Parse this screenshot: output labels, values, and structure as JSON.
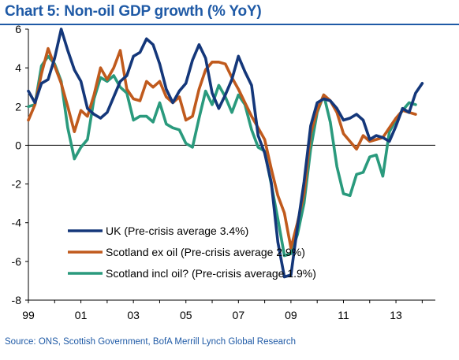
{
  "title": "Chart 5:  Non-oil GDP growth (% YoY)",
  "source": "Source:  ONS, Scottish Government, BofA Merrill Lynch Global Research",
  "chart_data": {
    "type": "line",
    "title": "Chart 5:  Non-oil GDP growth (% YoY)",
    "xlabel": "",
    "ylabel": "",
    "ylim": [
      -8,
      6
    ],
    "xlim": [
      1999.0,
      2014.5
    ],
    "yticks": [
      6,
      4,
      2,
      0,
      -2,
      -4,
      -6,
      -8
    ],
    "xtick_labels": [
      "99",
      "01",
      "03",
      "05",
      "07",
      "09",
      "11",
      "13"
    ],
    "xtick_values": [
      1999,
      2001,
      2003,
      2005,
      2007,
      2009,
      2011,
      2013
    ],
    "grid": false,
    "legend_position": "bottom-left",
    "series": [
      {
        "name": "UK (Pre-crisis average 3.4%)",
        "color": "#14377a",
        "x": [
          1999.0,
          1999.25,
          1999.5,
          1999.75,
          2000.0,
          2000.25,
          2000.5,
          2000.75,
          2001.0,
          2001.25,
          2001.5,
          2001.75,
          2002.0,
          2002.25,
          2002.5,
          2002.75,
          2003.0,
          2003.25,
          2003.5,
          2003.75,
          2004.0,
          2004.25,
          2004.5,
          2004.75,
          2005.0,
          2005.25,
          2005.5,
          2005.75,
          2006.0,
          2006.25,
          2006.5,
          2006.75,
          2007.0,
          2007.25,
          2007.5,
          2007.75,
          2008.0,
          2008.25,
          2008.5,
          2008.75,
          2009.0,
          2009.25,
          2009.5,
          2009.75,
          2010.0,
          2010.25,
          2010.5,
          2010.75,
          2011.0,
          2011.25,
          2011.5,
          2011.75,
          2012.0,
          2012.25,
          2012.5,
          2012.75,
          2013.0,
          2013.25,
          2013.5,
          2013.75,
          2014.0
        ],
        "values": [
          2.8,
          2.2,
          3.2,
          3.4,
          4.5,
          6.0,
          4.9,
          3.9,
          3.3,
          1.9,
          1.6,
          1.4,
          1.7,
          2.5,
          3.3,
          3.6,
          4.6,
          4.8,
          5.5,
          5.2,
          4.2,
          2.9,
          2.2,
          2.8,
          3.2,
          4.4,
          5.2,
          4.5,
          2.7,
          1.9,
          2.6,
          3.4,
          4.6,
          3.8,
          3.1,
          0.5,
          -0.4,
          -1.9,
          -5.0,
          -6.8,
          -6.7,
          -4.2,
          -1.9,
          1.0,
          2.2,
          2.4,
          2.3,
          1.9,
          1.3,
          1.4,
          1.6,
          1.3,
          0.3,
          0.5,
          0.4,
          0.2,
          1.0,
          1.9,
          1.7,
          2.7,
          3.2
        ]
      },
      {
        "name": "Scotland ex oil (Pre-crisis average 2.9%)",
        "color": "#c05a1d",
        "x": [
          1999.0,
          1999.25,
          1999.5,
          1999.75,
          2000.0,
          2000.25,
          2000.5,
          2000.75,
          2001.0,
          2001.25,
          2001.5,
          2001.75,
          2002.0,
          2002.25,
          2002.5,
          2002.75,
          2003.0,
          2003.25,
          2003.5,
          2003.75,
          2004.0,
          2004.25,
          2004.5,
          2004.75,
          2005.0,
          2005.25,
          2005.5,
          2005.75,
          2006.0,
          2006.25,
          2006.5,
          2006.75,
          2007.0,
          2007.25,
          2007.5,
          2007.75,
          2008.0,
          2008.25,
          2008.5,
          2008.75,
          2009.0,
          2009.25,
          2009.5,
          2009.75,
          2010.0,
          2010.25,
          2010.5,
          2010.75,
          2011.0,
          2011.25,
          2011.5,
          2011.75,
          2012.0,
          2012.25,
          2012.5,
          2012.75,
          2013.0,
          2013.25,
          2013.5,
          2013.75
        ],
        "values": [
          1.3,
          2.1,
          3.7,
          5.0,
          4.1,
          3.2,
          2.0,
          0.7,
          1.8,
          1.5,
          2.6,
          4.0,
          3.4,
          4.0,
          4.9,
          2.9,
          2.4,
          2.3,
          3.3,
          3.0,
          3.3,
          2.5,
          2.2,
          2.5,
          1.3,
          1.5,
          2.9,
          3.9,
          4.3,
          4.3,
          4.2,
          3.5,
          2.9,
          2.2,
          1.5,
          0.9,
          0.3,
          -1.2,
          -2.6,
          -3.5,
          -5.3,
          -4.0,
          -2.5,
          0.6,
          1.8,
          2.6,
          2.3,
          1.7,
          0.6,
          0.2,
          -0.2,
          0.5,
          0.2,
          0.3,
          0.4,
          0.9,
          1.4,
          1.8,
          1.7,
          1.6
        ]
      },
      {
        "name": "Scotland incl oil? (Pre-crisis average 1.9%)",
        "color": "#2a9a7d",
        "x": [
          1999.0,
          1999.25,
          1999.5,
          1999.75,
          2000.0,
          2000.25,
          2000.5,
          2000.75,
          2001.0,
          2001.25,
          2001.5,
          2001.75,
          2002.0,
          2002.25,
          2002.5,
          2002.75,
          2003.0,
          2003.25,
          2003.5,
          2003.75,
          2004.0,
          2004.25,
          2004.5,
          2004.75,
          2005.0,
          2005.25,
          2005.5,
          2005.75,
          2006.0,
          2006.25,
          2006.5,
          2006.75,
          2007.0,
          2007.25,
          2007.5,
          2007.75,
          2008.0,
          2008.25,
          2008.5,
          2008.75,
          2009.0,
          2009.25,
          2009.5,
          2009.75,
          2010.0,
          2010.25,
          2010.5,
          2010.75,
          2011.0,
          2011.25,
          2011.5,
          2011.75,
          2012.0,
          2012.25,
          2012.5,
          2012.75,
          2013.0,
          2013.25,
          2013.5,
          2013.75
        ],
        "values": [
          2.0,
          2.1,
          4.1,
          4.6,
          4.2,
          3.3,
          0.9,
          -0.7,
          -0.1,
          0.3,
          2.4,
          3.5,
          3.3,
          3.6,
          3.0,
          2.7,
          1.3,
          1.5,
          1.5,
          1.2,
          2.2,
          1.1,
          0.9,
          0.8,
          0.1,
          -0.1,
          1.4,
          2.8,
          2.1,
          3.1,
          2.5,
          1.7,
          2.6,
          2.1,
          0.8,
          -0.1,
          -0.3,
          -2.0,
          -3.8,
          -5.7,
          -5.6,
          -4.6,
          -3.0,
          -0.2,
          1.7,
          2.6,
          1.2,
          -1.1,
          -2.5,
          -2.6,
          -1.5,
          -1.4,
          -0.6,
          -0.5,
          -1.6,
          0.7,
          1.3,
          1.8,
          2.2,
          2.1
        ]
      }
    ]
  }
}
